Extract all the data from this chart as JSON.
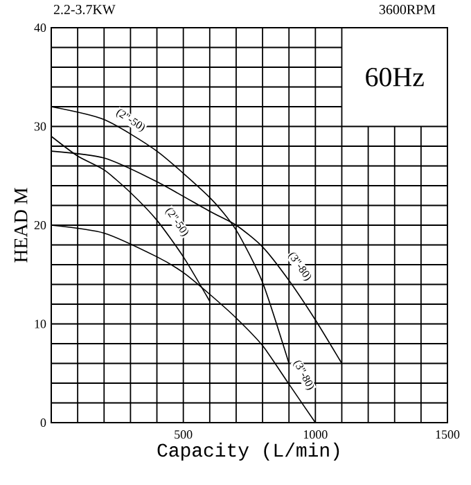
{
  "chart_data": {
    "type": "line",
    "title": "2.2-3.7KW",
    "subtitle": "3600RPM",
    "xlabel": "Capacity (L/min)",
    "ylabel": "HEAD M",
    "xlim": [
      0,
      1500
    ],
    "ylim": [
      0,
      40
    ],
    "xticks": [
      {
        "value": 0,
        "label": null
      },
      {
        "value": 100,
        "label": null
      },
      {
        "value": 200,
        "label": null
      },
      {
        "value": 300,
        "label": null
      },
      {
        "value": 400,
        "label": null
      },
      500,
      {
        "value": 600,
        "label": null
      },
      {
        "value": 700,
        "label": null
      },
      {
        "value": 800,
        "label": null
      },
      {
        "value": 900,
        "label": null
      },
      1000,
      {
        "value": 1100,
        "label": null
      },
      {
        "value": 1200,
        "label": null
      },
      {
        "value": 1300,
        "label": null
      },
      {
        "value": 1400,
        "label": null
      },
      1500
    ],
    "yticks": [
      0,
      {
        "value": 2,
        "label": null
      },
      {
        "value": 4,
        "label": null
      },
      {
        "value": 6,
        "label": null
      },
      {
        "value": 8,
        "label": null
      },
      10,
      {
        "value": 12,
        "label": null
      },
      {
        "value": 14,
        "label": null
      },
      {
        "value": 16,
        "label": null
      },
      {
        "value": 18,
        "label": null
      },
      20,
      {
        "value": 22,
        "label": null
      },
      {
        "value": 24,
        "label": null
      },
      {
        "value": 26,
        "label": null
      },
      {
        "value": 28,
        "label": null
      },
      30,
      {
        "value": 32,
        "label": null
      },
      {
        "value": 34,
        "label": null
      },
      {
        "value": 36,
        "label": null
      },
      {
        "value": 38,
        "label": null
      },
      40
    ],
    "grid": true,
    "marker": "none",
    "line_style": "solid",
    "series": [
      {
        "color": "#000000",
        "x": [
          0,
          200,
          400,
          600,
          700,
          800,
          900
        ],
        "values": [
          32,
          30.7,
          27.5,
          22.8,
          19.5,
          14.2,
          6
        ]
      },
      {
        "color": "#000000",
        "x": [
          0,
          200,
          400,
          600,
          700,
          800,
          900,
          1000,
          1100
        ],
        "values": [
          27.5,
          26.8,
          24.4,
          21.4,
          20,
          17.8,
          14.4,
          10.4,
          6
        ]
      },
      {
        "color": "#000000",
        "x": [
          0,
          100,
          200,
          300,
          400,
          500,
          600
        ],
        "values": [
          29,
          27,
          25.6,
          23.3,
          20.5,
          16.8,
          12.3
        ]
      },
      {
        "color": "#000000",
        "x": [
          0,
          200,
          400,
          500,
          600,
          700,
          800,
          900,
          1000
        ],
        "values": [
          20,
          19.2,
          16.8,
          15.2,
          13,
          10.6,
          7.8,
          3.9,
          0
        ]
      }
    ],
    "annotations": [
      "(2\"-50)",
      "(2\"-50)",
      "(3\"-80)",
      "(3\"-80)",
      "60Hz"
    ]
  }
}
